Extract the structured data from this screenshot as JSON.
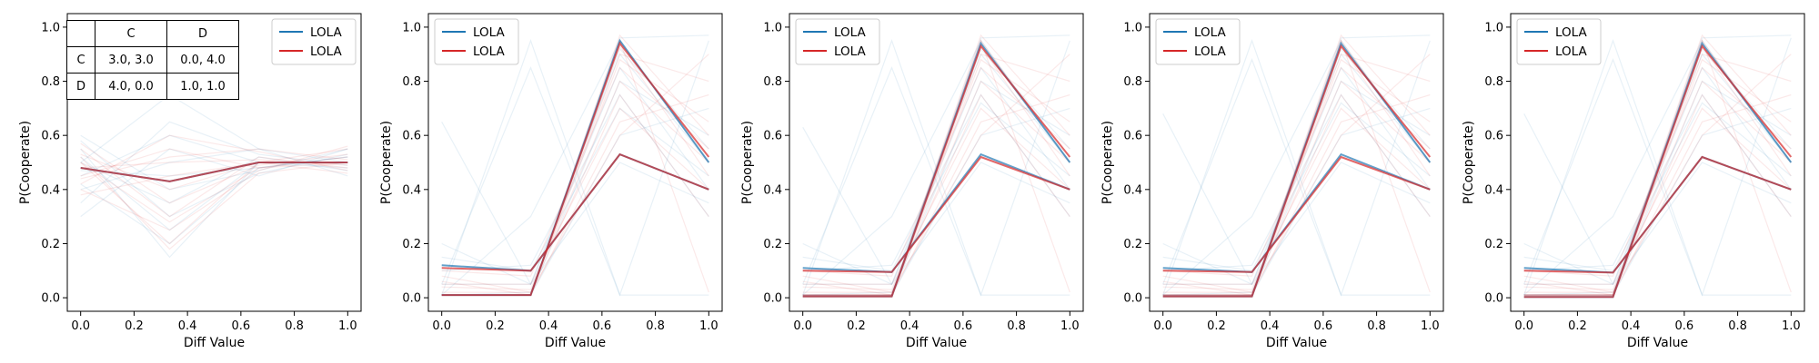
{
  "figure": {
    "panel_count": 5,
    "series_colors": {
      "blue": "#1f77b4",
      "red": "#d62728",
      "overlap": "#a0324b"
    }
  },
  "payoff_table": {
    "header": [
      "",
      "C",
      "D"
    ],
    "rows": [
      [
        "C",
        "3.0, 3.0",
        "0.0, 4.0"
      ],
      [
        "D",
        "4.0, 0.0",
        "1.0, 1.0"
      ]
    ]
  },
  "chart_data": [
    {
      "type": "line",
      "xlabel": "Diff Value",
      "ylabel": "P(Cooperate)",
      "xlim": [
        -0.05,
        1.05
      ],
      "ylim": [
        -0.05,
        1.05
      ],
      "xticks": [
        "0.0",
        "0.2",
        "0.4",
        "0.6",
        "0.8",
        "1.0"
      ],
      "yticks": [
        "0.0",
        "0.2",
        "0.4",
        "0.6",
        "0.8",
        "1.0"
      ],
      "grid": false,
      "legend_position": "top-right",
      "x": [
        0.0,
        0.333,
        0.667,
        1.0
      ],
      "series": [
        {
          "name": "LOLA",
          "color": "#1f77b4",
          "lines": [
            [
              0.48,
              0.43,
              0.5,
              0.5
            ]
          ]
        },
        {
          "name": "LOLA",
          "color": "#d62728",
          "lines": [
            [
              0.48,
              0.43,
              0.5,
              0.5
            ]
          ]
        }
      ],
      "background_runs": {
        "blue": [
          [
            0.55,
            0.15,
            0.5,
            0.48
          ],
          [
            0.5,
            0.75,
            0.55,
            0.5
          ],
          [
            0.42,
            0.2,
            0.48,
            0.52
          ],
          [
            0.3,
            0.55,
            0.45,
            0.55
          ],
          [
            0.5,
            0.35,
            0.52,
            0.47
          ],
          [
            0.45,
            0.6,
            0.5,
            0.5
          ],
          [
            0.58,
            0.3,
            0.46,
            0.53
          ],
          [
            0.4,
            0.5,
            0.55,
            0.45
          ],
          [
            0.52,
            0.25,
            0.5,
            0.5
          ],
          [
            0.47,
            0.45,
            0.48,
            0.52
          ],
          [
            0.35,
            0.65,
            0.53,
            0.49
          ],
          [
            0.6,
            0.4,
            0.47,
            0.55
          ]
        ],
        "red": [
          [
            0.5,
            0.2,
            0.5,
            0.5
          ],
          [
            0.45,
            0.55,
            0.48,
            0.52
          ],
          [
            0.55,
            0.3,
            0.52,
            0.48
          ],
          [
            0.38,
            0.45,
            0.5,
            0.55
          ],
          [
            0.52,
            0.18,
            0.46,
            0.5
          ],
          [
            0.42,
            0.6,
            0.54,
            0.47
          ],
          [
            0.57,
            0.35,
            0.49,
            0.53
          ],
          [
            0.48,
            0.5,
            0.51,
            0.49
          ],
          [
            0.4,
            0.25,
            0.47,
            0.56
          ],
          [
            0.53,
            0.4,
            0.5,
            0.46
          ],
          [
            0.44,
            0.52,
            0.55,
            0.51
          ],
          [
            0.5,
            0.28,
            0.48,
            0.5
          ]
        ]
      }
    },
    {
      "type": "line",
      "xlabel": "Diff Value",
      "ylabel": "P(Cooperate)",
      "xlim": [
        -0.05,
        1.05
      ],
      "ylim": [
        -0.05,
        1.05
      ],
      "xticks": [
        "0.0",
        "0.2",
        "0.4",
        "0.6",
        "0.8",
        "1.0"
      ],
      "yticks": [
        "0.0",
        "0.2",
        "0.4",
        "0.6",
        "0.8",
        "1.0"
      ],
      "grid": false,
      "legend_position": "top-left",
      "x": [
        0.0,
        0.333,
        0.667,
        1.0
      ],
      "series": [
        {
          "name": "LOLA",
          "color": "#1f77b4",
          "lines": [
            [
              0.12,
              0.1,
              0.53,
              0.4
            ],
            [
              0.01,
              0.01,
              0.95,
              0.5
            ]
          ]
        },
        {
          "name": "LOLA",
          "color": "#d62728",
          "lines": [
            [
              0.11,
              0.1,
              0.53,
              0.4
            ],
            [
              0.01,
              0.01,
              0.94,
              0.52
            ]
          ]
        }
      ],
      "background_runs": {
        "blue": [
          [
            0.01,
            0.95,
            0.01,
            0.95
          ],
          [
            0.65,
            0.05,
            0.9,
            0.5
          ],
          [
            0.05,
            0.85,
            0.01,
            0.01
          ],
          [
            0.01,
            0.01,
            0.96,
            0.97
          ],
          [
            0.15,
            0.1,
            0.7,
            0.45
          ],
          [
            0.01,
            0.01,
            0.8,
            0.6
          ],
          [
            0.2,
            0.05,
            0.5,
            0.35
          ],
          [
            0.01,
            0.02,
            0.92,
            0.55
          ],
          [
            0.1,
            0.12,
            0.75,
            0.3
          ],
          [
            0.01,
            0.01,
            0.6,
            0.7
          ],
          [
            0.05,
            0.05,
            0.85,
            0.4
          ],
          [
            0.01,
            0.3,
            0.95,
            0.5
          ]
        ],
        "red": [
          [
            0.01,
            0.01,
            0.95,
            0.5
          ],
          [
            0.01,
            0.01,
            0.9,
            0.8
          ],
          [
            0.05,
            0.05,
            0.7,
            0.4
          ],
          [
            0.01,
            0.01,
            0.97,
            0.6
          ],
          [
            0.1,
            0.08,
            0.85,
            0.55
          ],
          [
            0.02,
            0.02,
            0.6,
            0.9
          ],
          [
            0.01,
            0.01,
            0.93,
            0.45
          ],
          [
            0.08,
            0.02,
            0.75,
            0.3
          ],
          [
            0.01,
            0.01,
            0.88,
            0.65
          ],
          [
            0.04,
            0.03,
            0.8,
            0.5
          ],
          [
            0.01,
            0.01,
            0.95,
            0.02
          ],
          [
            0.06,
            0.01,
            0.65,
            0.75
          ]
        ]
      }
    },
    {
      "type": "line",
      "xlabel": "Diff Value",
      "ylabel": "P(Cooperate)",
      "xlim": [
        -0.05,
        1.05
      ],
      "ylim": [
        -0.05,
        1.05
      ],
      "xticks": [
        "0.0",
        "0.2",
        "0.4",
        "0.6",
        "0.8",
        "1.0"
      ],
      "yticks": [
        "0.0",
        "0.2",
        "0.4",
        "0.6",
        "0.8",
        "1.0"
      ],
      "grid": false,
      "legend_position": "top-left",
      "x": [
        0.0,
        0.333,
        0.667,
        1.0
      ],
      "series": [
        {
          "name": "LOLA",
          "color": "#1f77b4",
          "lines": [
            [
              0.11,
              0.095,
              0.53,
              0.4
            ],
            [
              0.005,
              0.005,
              0.94,
              0.5
            ]
          ]
        },
        {
          "name": "LOLA",
          "color": "#d62728",
          "lines": [
            [
              0.1,
              0.095,
              0.52,
              0.4
            ],
            [
              0.005,
              0.005,
              0.93,
              0.52
            ]
          ]
        }
      ],
      "background_runs": {
        "blue": [
          [
            0.01,
            0.95,
            0.01,
            0.95
          ],
          [
            0.63,
            0.05,
            0.9,
            0.5
          ],
          [
            0.05,
            0.85,
            0.01,
            0.01
          ],
          [
            0.01,
            0.01,
            0.96,
            0.97
          ],
          [
            0.15,
            0.1,
            0.72,
            0.45
          ],
          [
            0.01,
            0.01,
            0.8,
            0.6
          ],
          [
            0.2,
            0.05,
            0.5,
            0.35
          ],
          [
            0.01,
            0.02,
            0.92,
            0.55
          ],
          [
            0.1,
            0.12,
            0.75,
            0.3
          ],
          [
            0.01,
            0.01,
            0.6,
            0.7
          ],
          [
            0.05,
            0.05,
            0.85,
            0.4
          ],
          [
            0.01,
            0.3,
            0.95,
            0.5
          ]
        ],
        "red": [
          [
            0.01,
            0.01,
            0.95,
            0.5
          ],
          [
            0.01,
            0.01,
            0.9,
            0.8
          ],
          [
            0.05,
            0.05,
            0.7,
            0.4
          ],
          [
            0.01,
            0.01,
            0.97,
            0.6
          ],
          [
            0.1,
            0.08,
            0.85,
            0.55
          ],
          [
            0.02,
            0.02,
            0.6,
            0.9
          ],
          [
            0.01,
            0.01,
            0.93,
            0.45
          ],
          [
            0.08,
            0.02,
            0.75,
            0.3
          ],
          [
            0.01,
            0.01,
            0.88,
            0.65
          ],
          [
            0.04,
            0.03,
            0.8,
            0.5
          ],
          [
            0.01,
            0.01,
            0.95,
            0.02
          ],
          [
            0.06,
            0.01,
            0.65,
            0.75
          ]
        ]
      }
    },
    {
      "type": "line",
      "xlabel": "Diff Value",
      "ylabel": "P(Cooperate)",
      "xlim": [
        -0.05,
        1.05
      ],
      "ylim": [
        -0.05,
        1.05
      ],
      "xticks": [
        "0.0",
        "0.2",
        "0.4",
        "0.6",
        "0.8",
        "1.0"
      ],
      "yticks": [
        "0.0",
        "0.2",
        "0.4",
        "0.6",
        "0.8",
        "1.0"
      ],
      "grid": false,
      "legend_position": "top-left",
      "x": [
        0.0,
        0.333,
        0.667,
        1.0
      ],
      "series": [
        {
          "name": "LOLA",
          "color": "#1f77b4",
          "lines": [
            [
              0.11,
              0.095,
              0.53,
              0.4
            ],
            [
              0.005,
              0.005,
              0.94,
              0.5
            ]
          ]
        },
        {
          "name": "LOLA",
          "color": "#d62728",
          "lines": [
            [
              0.1,
              0.095,
              0.52,
              0.4
            ],
            [
              0.005,
              0.005,
              0.93,
              0.52
            ]
          ]
        }
      ],
      "background_runs": {
        "blue": [
          [
            0.01,
            0.95,
            0.01,
            0.95
          ],
          [
            0.68,
            0.05,
            0.9,
            0.5
          ],
          [
            0.05,
            0.88,
            0.01,
            0.01
          ],
          [
            0.01,
            0.01,
            0.96,
            0.97
          ],
          [
            0.15,
            0.1,
            0.72,
            0.45
          ],
          [
            0.01,
            0.01,
            0.8,
            0.6
          ],
          [
            0.2,
            0.05,
            0.5,
            0.35
          ],
          [
            0.01,
            0.02,
            0.92,
            0.55
          ],
          [
            0.1,
            0.12,
            0.75,
            0.3
          ],
          [
            0.01,
            0.01,
            0.6,
            0.7
          ],
          [
            0.05,
            0.05,
            0.85,
            0.4
          ],
          [
            0.01,
            0.3,
            0.95,
            0.5
          ]
        ],
        "red": [
          [
            0.01,
            0.01,
            0.95,
            0.5
          ],
          [
            0.01,
            0.01,
            0.9,
            0.8
          ],
          [
            0.05,
            0.05,
            0.7,
            0.4
          ],
          [
            0.01,
            0.01,
            0.97,
            0.6
          ],
          [
            0.1,
            0.08,
            0.85,
            0.55
          ],
          [
            0.02,
            0.02,
            0.6,
            0.9
          ],
          [
            0.01,
            0.01,
            0.93,
            0.45
          ],
          [
            0.08,
            0.02,
            0.75,
            0.3
          ],
          [
            0.01,
            0.01,
            0.88,
            0.65
          ],
          [
            0.04,
            0.03,
            0.8,
            0.5
          ],
          [
            0.01,
            0.01,
            0.95,
            0.02
          ],
          [
            0.06,
            0.01,
            0.65,
            0.75
          ]
        ]
      }
    },
    {
      "type": "line",
      "xlabel": "Diff Value",
      "ylabel": "P(Cooperate)",
      "xlim": [
        -0.05,
        1.05
      ],
      "ylim": [
        -0.05,
        1.05
      ],
      "xticks": [
        "0.0",
        "0.2",
        "0.4",
        "0.6",
        "0.8",
        "1.0"
      ],
      "yticks": [
        "0.0",
        "0.2",
        "0.4",
        "0.6",
        "0.8",
        "1.0"
      ],
      "grid": false,
      "legend_position": "top-left",
      "x": [
        0.0,
        0.333,
        0.667,
        1.0
      ],
      "series": [
        {
          "name": "LOLA",
          "color": "#1f77b4",
          "lines": [
            [
              0.11,
              0.093,
              0.52,
              0.4
            ],
            [
              0.003,
              0.003,
              0.94,
              0.5
            ]
          ]
        },
        {
          "name": "LOLA",
          "color": "#d62728",
          "lines": [
            [
              0.1,
              0.093,
              0.52,
              0.4
            ],
            [
              0.003,
              0.003,
              0.93,
              0.52
            ]
          ]
        }
      ],
      "background_runs": {
        "blue": [
          [
            0.01,
            0.95,
            0.01,
            0.96
          ],
          [
            0.68,
            0.05,
            0.9,
            0.5
          ],
          [
            0.05,
            0.88,
            0.01,
            0.01
          ],
          [
            0.01,
            0.01,
            0.96,
            0.97
          ],
          [
            0.15,
            0.1,
            0.72,
            0.45
          ],
          [
            0.01,
            0.01,
            0.8,
            0.6
          ],
          [
            0.2,
            0.05,
            0.5,
            0.35
          ],
          [
            0.01,
            0.02,
            0.92,
            0.55
          ],
          [
            0.1,
            0.12,
            0.75,
            0.3
          ],
          [
            0.01,
            0.01,
            0.6,
            0.7
          ],
          [
            0.05,
            0.05,
            0.85,
            0.4
          ],
          [
            0.01,
            0.3,
            0.95,
            0.5
          ]
        ],
        "red": [
          [
            0.01,
            0.01,
            0.95,
            0.5
          ],
          [
            0.01,
            0.01,
            0.9,
            0.8
          ],
          [
            0.05,
            0.05,
            0.7,
            0.4
          ],
          [
            0.01,
            0.01,
            0.97,
            0.6
          ],
          [
            0.1,
            0.08,
            0.85,
            0.55
          ],
          [
            0.02,
            0.02,
            0.6,
            0.9
          ],
          [
            0.01,
            0.01,
            0.93,
            0.45
          ],
          [
            0.08,
            0.02,
            0.75,
            0.3
          ],
          [
            0.01,
            0.01,
            0.88,
            0.65
          ],
          [
            0.04,
            0.03,
            0.8,
            0.5
          ],
          [
            0.01,
            0.01,
            0.95,
            0.02
          ],
          [
            0.06,
            0.01,
            0.65,
            0.75
          ]
        ]
      }
    }
  ]
}
